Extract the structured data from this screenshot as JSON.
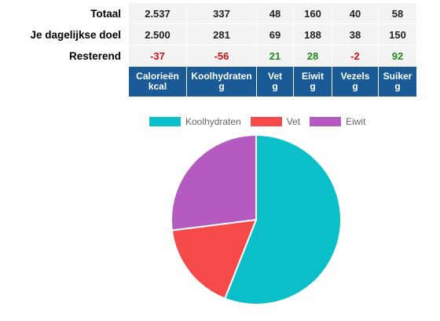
{
  "rows": [
    {
      "label": "Totaal",
      "values": [
        "2.537",
        "337",
        "48",
        "160",
        "40",
        "58"
      ],
      "status": [
        "",
        "",
        "",
        "",
        "",
        ""
      ]
    },
    {
      "label": "Je dagelijkse doel",
      "values": [
        "2.500",
        "281",
        "69",
        "188",
        "38",
        "150"
      ],
      "status": [
        "",
        "",
        "",
        "",
        "",
        ""
      ]
    },
    {
      "label": "Resterend",
      "values": [
        "-37",
        "-56",
        "21",
        "28",
        "-2",
        "92"
      ],
      "status": [
        "neg",
        "neg",
        "pos",
        "pos",
        "neg",
        "pos"
      ]
    }
  ],
  "columns": [
    {
      "name": "Calorieën",
      "unit": "kcal"
    },
    {
      "name": "Koolhydraten",
      "unit": "g"
    },
    {
      "name": "Vet",
      "unit": "g"
    },
    {
      "name": "Eiwit",
      "unit": "g"
    },
    {
      "name": "Vezels",
      "unit": "g"
    },
    {
      "name": "Suiker",
      "unit": "g"
    }
  ],
  "colors": {
    "header": "#1a5a96",
    "negative": "#cc1111",
    "positive": "#228a1c"
  },
  "chart_data": {
    "type": "pie",
    "legend_placement": "top",
    "series": [
      {
        "name": "Koolhydraten",
        "value": 56,
        "color": "#0bbfc9"
      },
      {
        "name": "Vet",
        "value": 17,
        "color": "#f64a4a"
      },
      {
        "name": "Eiwit",
        "value": 27,
        "color": "#b45ac0"
      }
    ]
  }
}
